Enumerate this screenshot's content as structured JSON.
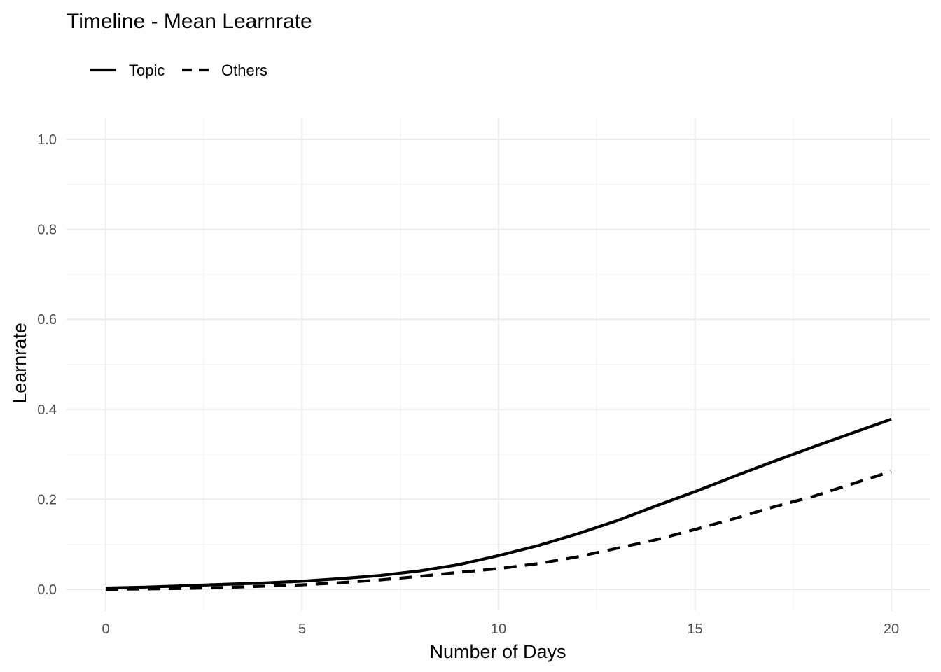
{
  "chart_data": {
    "type": "line",
    "title": "Timeline - Mean Learnrate",
    "xlabel": "Number of Days",
    "ylabel": "Learnrate",
    "xlim": [
      0,
      20
    ],
    "ylim": [
      0,
      1.0
    ],
    "x_ticks": [
      0,
      5,
      10,
      15,
      20
    ],
    "x_tick_labels": [
      "0",
      "5",
      "10",
      "15",
      "20"
    ],
    "y_ticks": [
      0,
      0.2,
      0.4,
      0.6,
      0.8,
      1.0
    ],
    "y_tick_labels": [
      "0.0",
      "0.2",
      "0.4",
      "0.6",
      "0.8",
      "1.0"
    ],
    "grid": true,
    "legend_position": "top-left",
    "series": [
      {
        "name": "Topic",
        "line_style": "solid",
        "color": "#000000",
        "x": [
          0,
          1,
          2,
          3,
          4,
          5,
          6,
          7,
          8,
          9,
          10,
          11,
          12,
          13,
          14,
          15,
          16,
          17,
          18,
          19,
          20
        ],
        "y": [
          0.003,
          0.005,
          0.008,
          0.011,
          0.014,
          0.018,
          0.024,
          0.031,
          0.041,
          0.055,
          0.075,
          0.097,
          0.123,
          0.152,
          0.185,
          0.217,
          0.251,
          0.284,
          0.316,
          0.347,
          0.378
        ]
      },
      {
        "name": "Others",
        "line_style": "dashed",
        "color": "#000000",
        "x": [
          0,
          1,
          2,
          3,
          4,
          5,
          6,
          7,
          8,
          9,
          10,
          11,
          12,
          13,
          14,
          15,
          16,
          17,
          18,
          19,
          20
        ],
        "y": [
          0.0,
          0.001,
          0.002,
          0.004,
          0.007,
          0.01,
          0.015,
          0.021,
          0.029,
          0.038,
          0.046,
          0.057,
          0.072,
          0.091,
          0.11,
          0.133,
          0.157,
          0.183,
          0.206,
          0.234,
          0.262
        ]
      }
    ]
  }
}
